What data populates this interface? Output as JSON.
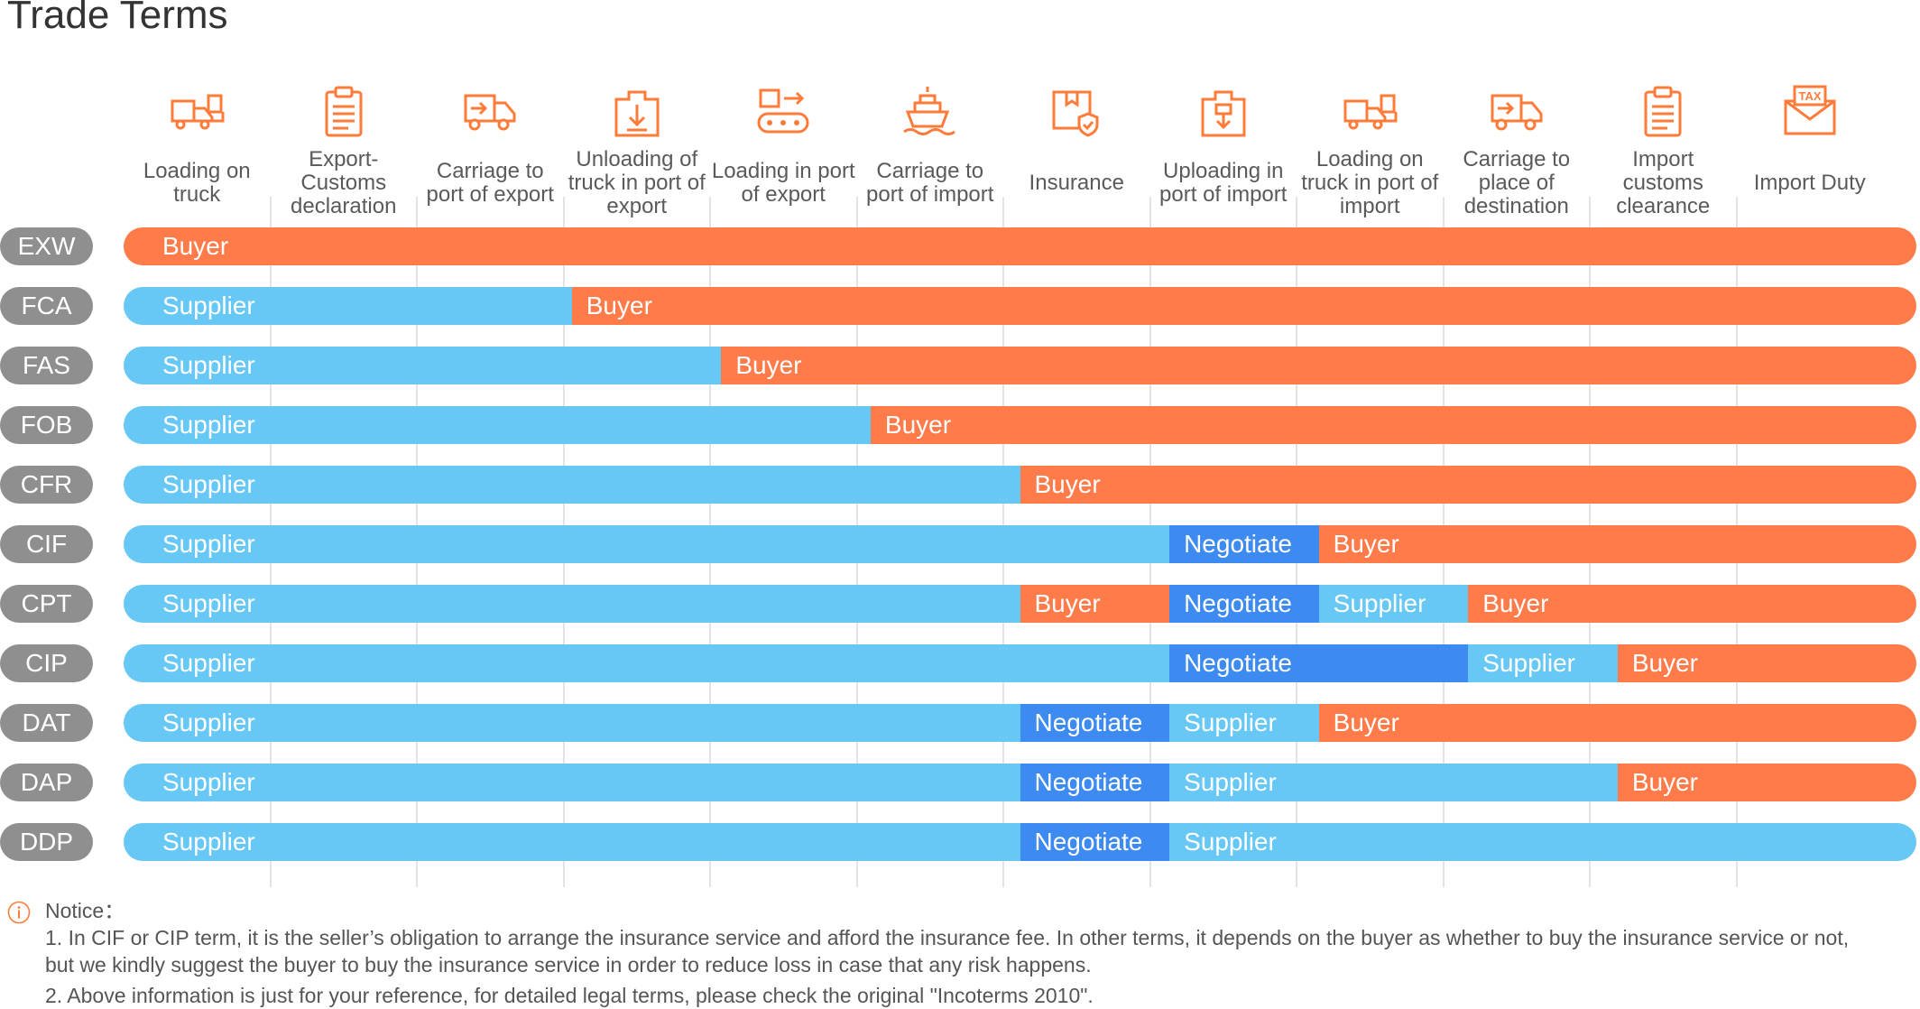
{
  "title": "Trade Terms",
  "colors": {
    "supplier": "#67c8f5",
    "buyer": "#ff7b4a",
    "negotiate": "#3d8bf0",
    "term": "#8f8f8f",
    "icon": "#ff7b3a"
  },
  "columns": [
    {
      "label": "Loading on truck",
      "icon": "truck-loading-icon"
    },
    {
      "label": "Export- Customs declaration",
      "icon": "clipboard-icon"
    },
    {
      "label": "Carriage to port of export",
      "icon": "truck-arrow-icon"
    },
    {
      "label": "Unloading of truck in port of export",
      "icon": "box-down-icon"
    },
    {
      "label": "Loading in port of export",
      "icon": "conveyor-icon"
    },
    {
      "label": "Carriage to port of import",
      "icon": "ship-icon"
    },
    {
      "label": "Insurance",
      "icon": "insurance-box-icon"
    },
    {
      "label": "Uploading in port of import",
      "icon": "box-up-icon"
    },
    {
      "label": "Loading on truck in port of import",
      "icon": "truck-loading-icon"
    },
    {
      "label": "Carriage to place of destination",
      "icon": "truck-arrow-icon"
    },
    {
      "label": "Import customs clearance",
      "icon": "clipboard-icon"
    },
    {
      "label": "Import Duty",
      "icon": "tax-envelope-icon"
    }
  ],
  "tax_icon_text": "TAX",
  "terms": [
    {
      "term": "EXW",
      "segments": [
        {
          "party": "buyer",
          "label": "Buyer",
          "span": 12
        }
      ]
    },
    {
      "term": "FCA",
      "segments": [
        {
          "party": "supplier",
          "label": "Supplier",
          "span": 3
        },
        {
          "party": "buyer",
          "label": "Buyer",
          "span": 9
        }
      ]
    },
    {
      "term": "FAS",
      "segments": [
        {
          "party": "supplier",
          "label": "Supplier",
          "span": 4
        },
        {
          "party": "buyer",
          "label": "Buyer",
          "span": 8
        }
      ]
    },
    {
      "term": "FOB",
      "segments": [
        {
          "party": "supplier",
          "label": "Supplier",
          "span": 5
        },
        {
          "party": "buyer",
          "label": "Buyer",
          "span": 7
        }
      ]
    },
    {
      "term": "CFR",
      "segments": [
        {
          "party": "supplier",
          "label": "Supplier",
          "span": 6
        },
        {
          "party": "buyer",
          "label": "Buyer",
          "span": 6
        }
      ]
    },
    {
      "term": "CIF",
      "segments": [
        {
          "party": "supplier",
          "label": "Supplier",
          "span": 7
        },
        {
          "party": "negotiate",
          "label": "Negotiate",
          "span": 1
        },
        {
          "party": "buyer",
          "label": "Buyer",
          "span": 4
        }
      ]
    },
    {
      "term": "CPT",
      "segments": [
        {
          "party": "supplier",
          "label": "Supplier",
          "span": 6
        },
        {
          "party": "buyer",
          "label": "Buyer",
          "span": 1
        },
        {
          "party": "negotiate",
          "label": "Negotiate",
          "span": 1
        },
        {
          "party": "supplier",
          "label": "Supplier",
          "span": 1
        },
        {
          "party": "buyer",
          "label": "Buyer",
          "span": 3
        }
      ]
    },
    {
      "term": "CIP",
      "segments": [
        {
          "party": "supplier",
          "label": "Supplier",
          "span": 7
        },
        {
          "party": "negotiate",
          "label": "Negotiate",
          "span": 2
        },
        {
          "party": "supplier",
          "label": "Supplier",
          "span": 1
        },
        {
          "party": "buyer",
          "label": "Buyer",
          "span": 2
        }
      ]
    },
    {
      "term": "DAT",
      "segments": [
        {
          "party": "supplier",
          "label": "Supplier",
          "span": 6
        },
        {
          "party": "negotiate",
          "label": "Negotiate",
          "span": 1
        },
        {
          "party": "supplier",
          "label": "Supplier",
          "span": 1
        },
        {
          "party": "buyer",
          "label": "Buyer",
          "span": 4
        }
      ]
    },
    {
      "term": "DAP",
      "segments": [
        {
          "party": "supplier",
          "label": "Supplier",
          "span": 6
        },
        {
          "party": "negotiate",
          "label": "Negotiate",
          "span": 1
        },
        {
          "party": "supplier",
          "label": "Supplier",
          "span": 3
        },
        {
          "party": "buyer",
          "label": "Buyer",
          "span": 2
        }
      ]
    },
    {
      "term": "DDP",
      "segments": [
        {
          "party": "supplier",
          "label": "Supplier",
          "span": 6
        },
        {
          "party": "negotiate",
          "label": "Negotiate",
          "span": 1
        },
        {
          "party": "supplier",
          "label": "Supplier",
          "span": 5
        }
      ]
    }
  ],
  "notice": {
    "heading": "Notice：",
    "lines": [
      "1. In CIF or CIP term, it is the seller’s obligation to arrange the insurance service and afford the insurance fee. In other terms, it depends on the buyer as whether to buy the insurance service or not,",
      "but we kindly suggest the buyer to buy the insurance service in order to reduce loss in case that any risk happens.",
      "2. Above information is just for your reference, for detailed legal terms, please check the original \"Incoterms 2010\"."
    ]
  }
}
